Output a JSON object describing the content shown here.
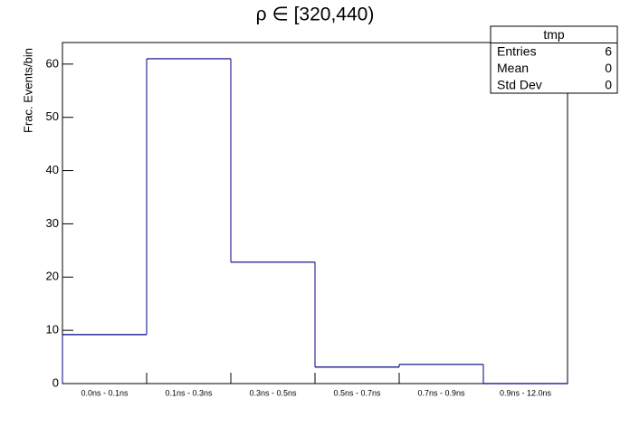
{
  "chart_data": {
    "type": "histogram-steps",
    "title": "ρ ∈ [320,440)",
    "y_label": "Frac. Events/bin",
    "categories": [
      "0.0ns - 0.1ns",
      "0.1ns - 0.3ns",
      "0.3ns - 0.5ns",
      "0.5ns - 0.7ns",
      "0.7ns - 0.9ns",
      "0.9ns - 12.0ns"
    ],
    "values": [
      9.2,
      61,
      22.8,
      3.1,
      3.6,
      0
    ],
    "color": "#000080",
    "ylim": [
      0,
      64.05
    ],
    "yticks": [
      0,
      10,
      20,
      30,
      40,
      50,
      60
    ],
    "stats": {
      "title": "tmp",
      "rows": [
        {
          "label": "Entries",
          "value": 6
        },
        {
          "label": "Mean",
          "value": 0
        },
        {
          "label": "Std Dev",
          "value": 0
        }
      ]
    }
  }
}
